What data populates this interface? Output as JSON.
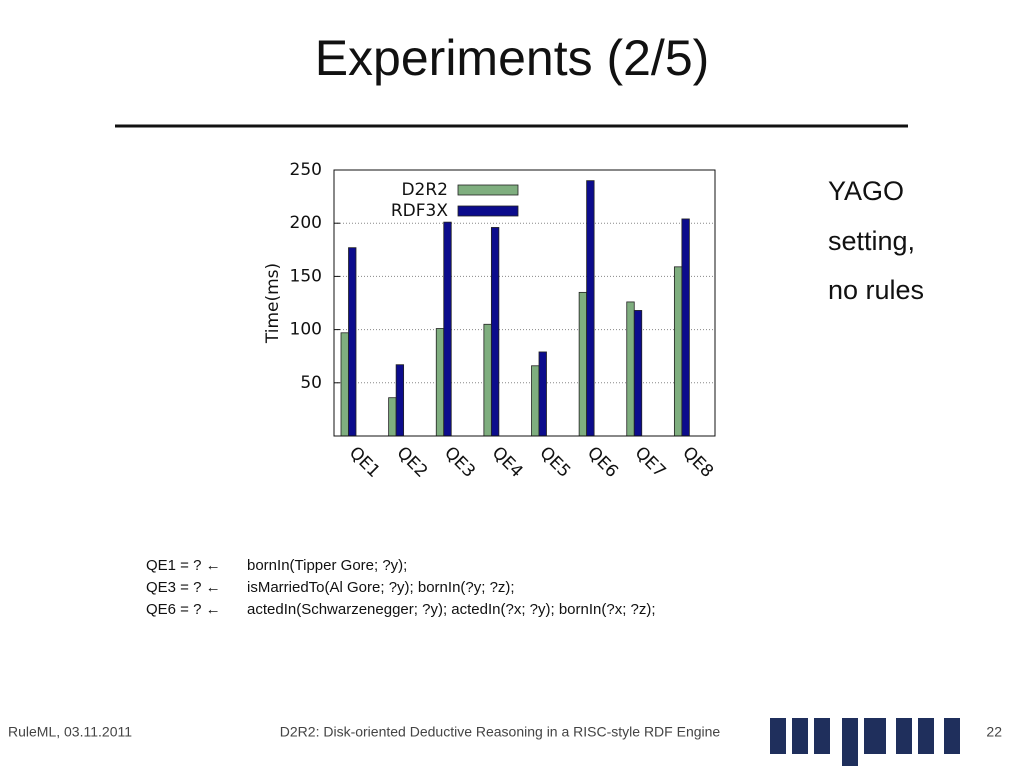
{
  "slide": {
    "title": "Experiments (2/5)",
    "note": [
      "YAGO",
      "setting,",
      "no rules"
    ],
    "queries": [
      {
        "lhs": "QE1 = ? ←",
        "rhs": "bornIn(Tipper Gore; ?y);"
      },
      {
        "lhs": "QE3 = ? ←",
        "rhs": "isMarriedTo(Al Gore; ?y); bornIn(?y; ?z);"
      },
      {
        "lhs": "QE6 = ? ←",
        "rhs": "actedIn(Schwarzenegger; ?y); actedIn(?x; ?y); bornIn(?x; ?z);"
      }
    ],
    "footer": {
      "left": "RuleML, 03.11.2011",
      "center": "D2R2: Disk-oriented Deductive Reasoning in a RISC-style RDF Engine",
      "page": "22"
    }
  },
  "chart_data": {
    "type": "bar",
    "y_label": "Time(ms)",
    "categories": [
      "QE1",
      "QE2",
      "QE3",
      "QE4",
      "QE5",
      "QE6",
      "QE7",
      "QE8"
    ],
    "series": [
      {
        "name": "D2R2",
        "color": "#7fae7f",
        "values": [
          97,
          36,
          101,
          105,
          66,
          135,
          126,
          159
        ]
      },
      {
        "name": "RDF3X",
        "color": "#0c0c8c",
        "values": [
          177,
          67,
          201,
          196,
          79,
          240,
          118,
          204
        ]
      }
    ],
    "ylim": [
      0,
      250
    ],
    "yticks": [
      50,
      100,
      150,
      200,
      250
    ],
    "grid": true,
    "legend": "top-left"
  }
}
